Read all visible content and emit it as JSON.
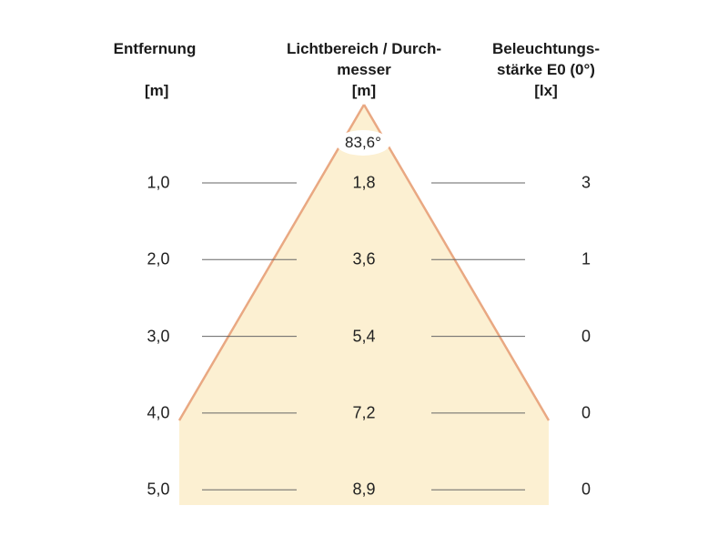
{
  "headers": {
    "distance": {
      "line1": "Entfernung",
      "unit": "[m]"
    },
    "diameter": {
      "line1": "Lichtbereich / Durch-",
      "line2": "messer",
      "unit": "[m]"
    },
    "illuminance": {
      "line1": "Beleuchtungs-",
      "line2": "stärke E0 (0°)",
      "unit": "[lx]"
    }
  },
  "beam_angle": "83,6°",
  "rows": [
    {
      "distance": "1,0",
      "diameter": "1,8",
      "illuminance": "3"
    },
    {
      "distance": "2,0",
      "diameter": "3,6",
      "illuminance": "1"
    },
    {
      "distance": "3,0",
      "diameter": "5,4",
      "illuminance": "0"
    },
    {
      "distance": "4,0",
      "diameter": "7,2",
      "illuminance": "0"
    },
    {
      "distance": "5,0",
      "diameter": "8,9",
      "illuminance": "0"
    }
  ],
  "colors": {
    "beam_fill": "#fcf0d2",
    "beam_edge": "#e9a882",
    "rule": "#666666"
  }
}
